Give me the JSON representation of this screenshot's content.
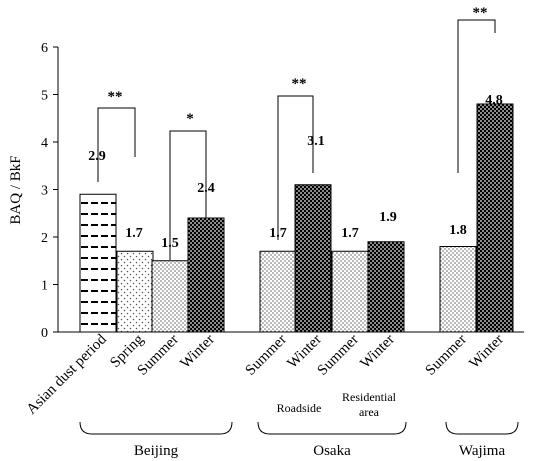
{
  "chart_data": {
    "type": "bar",
    "ylabel": "BAQ / BkF",
    "ylim": [
      0,
      6
    ],
    "yticks": [
      "0",
      "1",
      "2",
      "3",
      "4",
      "5",
      "6"
    ],
    "grid": false,
    "legend": "none",
    "bars": [
      {
        "category": "Asian dust period",
        "value": 2.9,
        "label": "2.9",
        "group": "Beijing",
        "pattern": "dash"
      },
      {
        "category": "Spring",
        "value": 1.7,
        "label": "1.7",
        "group": "Beijing",
        "pattern": "dots-sparse"
      },
      {
        "category": "Summer",
        "value": 1.5,
        "label": "1.5",
        "group": "Beijing",
        "pattern": "dots-light"
      },
      {
        "category": "Winter",
        "value": 2.4,
        "label": "2.4",
        "group": "Beijing",
        "pattern": "dots-dark"
      },
      {
        "category": "Summer",
        "value": 1.7,
        "label": "1.7",
        "group": "Osaka",
        "subgroup": "Roadside",
        "pattern": "dots-light"
      },
      {
        "category": "Winter",
        "value": 3.1,
        "label": "3.1",
        "group": "Osaka",
        "subgroup": "Roadside",
        "pattern": "dots-dark"
      },
      {
        "category": "Summer",
        "value": 1.7,
        "label": "1.7",
        "group": "Osaka",
        "subgroup": "Residential area",
        "pattern": "dots-light"
      },
      {
        "category": "Winter",
        "value": 1.9,
        "label": "1.9",
        "group": "Osaka",
        "subgroup": "Residential area",
        "pattern": "dots-dark"
      },
      {
        "category": "Summer",
        "value": 1.8,
        "label": "1.8",
        "group": "Wajima",
        "pattern": "dots-light"
      },
      {
        "category": "Winter",
        "value": 4.8,
        "label": "4.8",
        "group": "Wajima",
        "pattern": "dots-dark"
      }
    ],
    "significance": [
      {
        "from": 0,
        "to": 1,
        "label": "**",
        "level": 4.8
      },
      {
        "from": 2,
        "to": 3,
        "label": "*",
        "level": 4.2
      },
      {
        "from": 4,
        "to": 5,
        "label": "**",
        "level": 5.0
      },
      {
        "from": 8,
        "to": 9,
        "label": "**",
        "level": 6.7
      }
    ],
    "groups": [
      "Beijing",
      "Osaka",
      "Wajima"
    ],
    "subgroups": [
      "Roadside",
      "Residential area"
    ]
  }
}
